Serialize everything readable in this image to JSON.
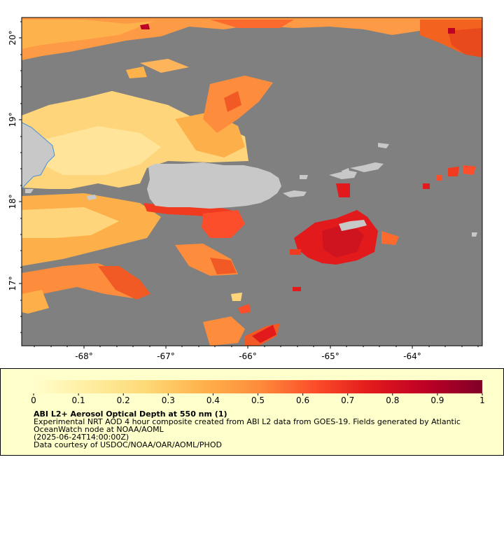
{
  "map": {
    "lat_labels": [
      "20°",
      "19°",
      "18°",
      "17°"
    ],
    "lon_labels": [
      "-68°",
      "-67°",
      "-66°",
      "-65°",
      "-64°"
    ],
    "colors": {
      "no_data": "#808080",
      "land": "#c8c8c8",
      "coast": "#4a8fd4"
    }
  },
  "legend": {
    "title": "ABI L2+ Aerosol Optical Depth at 550 nm (1)",
    "line1": "Experimental NRT AOD 4 hour composite created from ABI L2 data from GOES-19. Fields generated by Atlantic",
    "line2": "OceanWatch node at NOAA/AOML",
    "line3": "(2025-06-24T14:00:00Z)",
    "line4": "Data courtesy of USDOC/NOAA/OAR/AOML/PHOD",
    "scale_labels": [
      "0",
      "0.1",
      "0.2",
      "0.3",
      "0.4",
      "0.5",
      "0.6",
      "0.7",
      "0.8",
      "0.9",
      "1"
    ],
    "scale_min": 0,
    "scale_max": 1,
    "colormap": [
      "#ffffcc",
      "#ffeda0",
      "#fed976",
      "#feb24c",
      "#fd8d3c",
      "#fc4e2a",
      "#e31a1c",
      "#bd0026",
      "#800026"
    ]
  }
}
